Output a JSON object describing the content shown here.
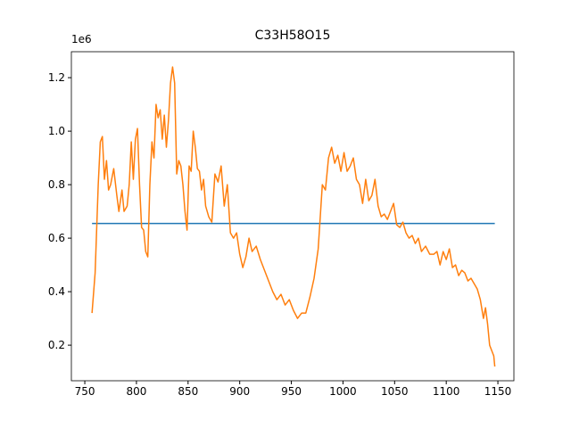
{
  "chart_data": {
    "type": "line",
    "title": "C33H58O15",
    "y_offset_label": "1e6",
    "xlim": [
      737,
      1165.5
    ],
    "ylim": [
      0.067,
      1.297
    ],
    "xticks": [
      750,
      800,
      850,
      900,
      950,
      1000,
      1050,
      1100,
      1150
    ],
    "yticks": [
      0.2,
      0.4,
      0.6,
      0.8,
      {
        "value": 1,
        "label": "1.0"
      },
      1.2
    ],
    "series": [
      {
        "color": "#1f77b4",
        "x": [
          757,
          1147
        ],
        "values": [
          0.655,
          0.655
        ]
      },
      {
        "color": "#ff7f0e",
        "x": [
          757,
          760,
          763,
          765,
          767,
          769,
          771,
          773,
          775,
          778,
          781,
          783,
          786,
          788,
          791,
          793,
          795,
          797,
          799,
          801,
          803,
          805,
          807,
          809,
          811,
          813,
          815,
          817,
          819,
          821,
          823,
          825,
          827,
          829,
          831,
          833,
          835,
          837,
          839,
          841,
          843,
          845,
          847,
          849,
          851,
          853,
          855,
          857,
          859,
          861,
          863,
          865,
          867,
          870,
          873,
          876,
          879,
          882,
          885,
          888,
          891,
          894,
          897,
          900,
          903,
          906,
          909,
          912,
          916,
          920,
          924,
          928,
          932,
          936,
          940,
          944,
          948,
          952,
          956,
          960,
          964,
          968,
          972,
          976,
          980,
          983,
          986,
          989,
          992,
          995,
          998,
          1001,
          1004,
          1007,
          1010,
          1013,
          1016,
          1019,
          1022,
          1025,
          1028,
          1031,
          1034,
          1037,
          1040,
          1043,
          1046,
          1049,
          1052,
          1055,
          1058,
          1061,
          1064,
          1067,
          1070,
          1073,
          1076,
          1080,
          1084,
          1088,
          1091,
          1094,
          1097,
          1100,
          1103,
          1106,
          1109,
          1112,
          1115,
          1118,
          1121,
          1124,
          1127,
          1130,
          1133,
          1136,
          1138,
          1140,
          1142,
          1144,
          1146,
          1147
        ],
        "values": [
          0.32,
          0.47,
          0.8,
          0.96,
          0.98,
          0.82,
          0.89,
          0.78,
          0.8,
          0.86,
          0.76,
          0.7,
          0.78,
          0.7,
          0.72,
          0.8,
          0.96,
          0.82,
          0.97,
          1.01,
          0.8,
          0.64,
          0.63,
          0.55,
          0.53,
          0.8,
          0.96,
          0.9,
          1.1,
          1.05,
          1.08,
          0.97,
          1.06,
          0.94,
          1.04,
          1.18,
          1.24,
          1.18,
          0.84,
          0.89,
          0.87,
          0.8,
          0.7,
          0.63,
          0.87,
          0.85,
          1.0,
          0.94,
          0.86,
          0.85,
          0.78,
          0.82,
          0.72,
          0.68,
          0.66,
          0.84,
          0.81,
          0.87,
          0.72,
          0.8,
          0.62,
          0.6,
          0.62,
          0.54,
          0.49,
          0.53,
          0.6,
          0.55,
          0.57,
          0.52,
          0.48,
          0.44,
          0.4,
          0.37,
          0.39,
          0.35,
          0.37,
          0.33,
          0.3,
          0.32,
          0.32,
          0.38,
          0.45,
          0.56,
          0.8,
          0.78,
          0.9,
          0.94,
          0.88,
          0.91,
          0.85,
          0.92,
          0.85,
          0.87,
          0.9,
          0.82,
          0.8,
          0.73,
          0.82,
          0.74,
          0.76,
          0.82,
          0.72,
          0.68,
          0.69,
          0.67,
          0.7,
          0.73,
          0.65,
          0.64,
          0.66,
          0.62,
          0.6,
          0.61,
          0.58,
          0.6,
          0.55,
          0.57,
          0.54,
          0.54,
          0.55,
          0.5,
          0.55,
          0.52,
          0.56,
          0.49,
          0.5,
          0.46,
          0.48,
          0.47,
          0.44,
          0.45,
          0.43,
          0.41,
          0.37,
          0.3,
          0.34,
          0.28,
          0.2,
          0.18,
          0.16,
          0.12
        ]
      }
    ]
  }
}
